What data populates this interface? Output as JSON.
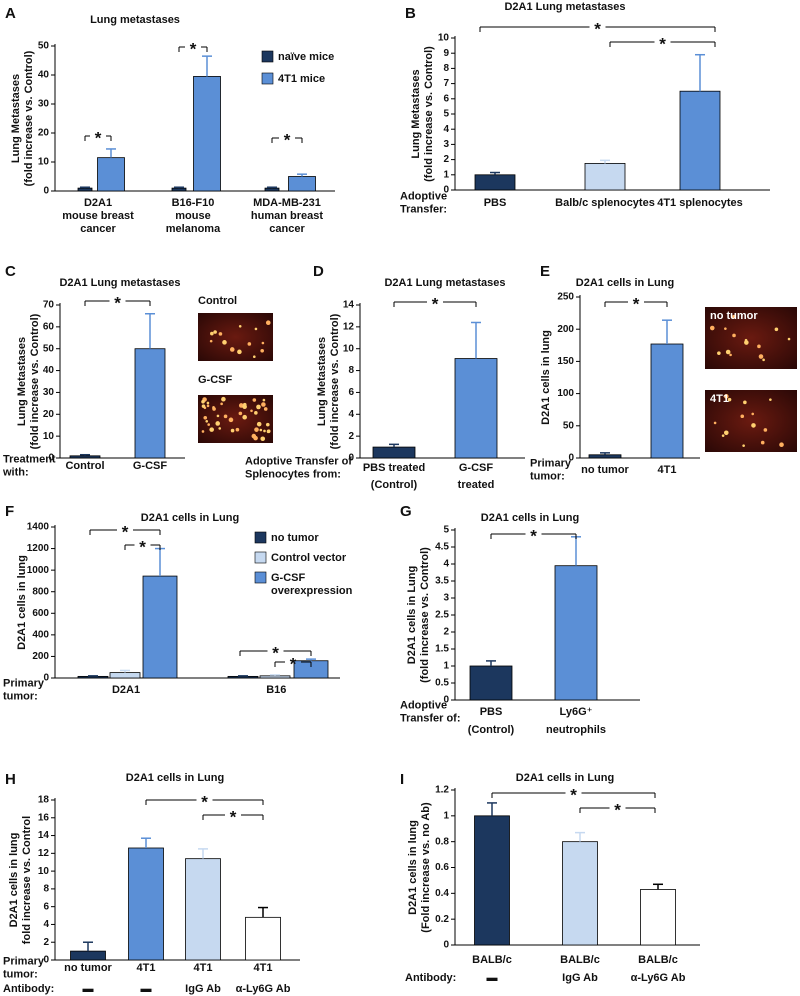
{
  "chart_data": [
    {
      "type": "bar",
      "panel": "A",
      "title": "Lung metastases",
      "ylabel": [
        "Lung Metastases",
        "(fold increase vs. Control)"
      ],
      "categories": [
        [
          "D2A1",
          "mouse breast",
          "cancer"
        ],
        [
          "B16-F10",
          "mouse",
          "melanoma"
        ],
        [
          "MDA-MB-231",
          "human breast",
          "cancer"
        ]
      ],
      "series": [
        {
          "name": "naïve mice",
          "color": "#1c375e",
          "values": [
            1,
            1,
            1
          ],
          "errors": [
            0.3,
            0.3,
            0.3
          ]
        },
        {
          "name": "4T1 mice",
          "color": "#5b8fd6",
          "values": [
            11.5,
            39.5,
            5
          ],
          "errors": [
            3,
            7,
            0.8
          ]
        }
      ],
      "ylim": [
        0,
        50
      ],
      "yticks": [
        0,
        10,
        20,
        30,
        40,
        50
      ],
      "legend": "upper right",
      "significance": [
        "*",
        "*",
        "*"
      ]
    },
    {
      "type": "bar",
      "panel": "B",
      "title": "D2A1 Lung metastases",
      "ylabel": [
        "Lung Metastases",
        "(fold increase vs. Control)"
      ],
      "categories": [
        [
          "PBS"
        ],
        [
          "Balb/c splenocytes"
        ],
        [
          "4T1 splenocytes"
        ]
      ],
      "row_labels": [
        [
          "Adoptive",
          "Transfer:"
        ]
      ],
      "series": [
        {
          "colors": [
            "#1c375e",
            "#c6d9f0",
            "#5b8fd6"
          ],
          "values": [
            1,
            1.75,
            6.5
          ],
          "errors": [
            0.15,
            0.2,
            2.4
          ]
        }
      ],
      "ylim": [
        0,
        10
      ],
      "yticks": [
        0,
        1,
        2,
        3,
        4,
        5,
        6,
        7,
        8,
        9,
        10
      ],
      "significance": [
        "*",
        "*"
      ]
    },
    {
      "type": "bar",
      "panel": "C",
      "title": "D2A1 Lung metastases",
      "ylabel": [
        "Lung Metastases",
        "(fold increase vs. Control)"
      ],
      "categories": [
        [
          "Control"
        ],
        [
          "G-CSF"
        ]
      ],
      "row_labels": [
        [
          "Treatment",
          "with:"
        ]
      ],
      "series": [
        {
          "colors": [
            "#1c375e",
            "#5b8fd6"
          ],
          "values": [
            1,
            50
          ],
          "errors": [
            0.5,
            16
          ]
        }
      ],
      "ylim": [
        0,
        70
      ],
      "yticks": [
        0,
        10,
        20,
        30,
        40,
        50,
        60,
        70
      ],
      "significance": [
        "*"
      ],
      "images": [
        "Control",
        "G-CSF"
      ]
    },
    {
      "type": "bar",
      "panel": "D",
      "title": "D2A1 Lung metastases",
      "ylabel": [
        "Lung Metastases",
        "(fold increase vs. Control)"
      ],
      "categories": [
        [
          "PBS treated",
          "(Control)"
        ],
        [
          "G-CSF",
          "treated"
        ]
      ],
      "row_labels": [
        [
          "Adoptive Transfer of",
          "Splenocytes from:"
        ]
      ],
      "series": [
        {
          "colors": [
            "#1c375e",
            "#5b8fd6"
          ],
          "values": [
            1,
            9.1
          ],
          "errors": [
            0.25,
            3.3
          ]
        }
      ],
      "ylim": [
        0,
        14
      ],
      "yticks": [
        0,
        2,
        4,
        6,
        8,
        10,
        12,
        14
      ],
      "significance": [
        "*"
      ]
    },
    {
      "type": "bar",
      "panel": "E",
      "title": "D2A1 cells in Lung",
      "ylabel": [
        "D2A1 cells in lung"
      ],
      "categories": [
        [
          "no tumor"
        ],
        [
          "4T1"
        ]
      ],
      "row_labels": [
        [
          "Primary",
          "tumor:"
        ]
      ],
      "series": [
        {
          "colors": [
            "#1c375e",
            "#5b8fd6"
          ],
          "values": [
            5,
            177
          ],
          "errors": [
            3,
            37
          ]
        }
      ],
      "ylim": [
        0,
        250
      ],
      "yticks": [
        0,
        50,
        100,
        150,
        200,
        250
      ],
      "significance": [
        "*"
      ],
      "images": [
        "no tumor",
        "4T1"
      ]
    },
    {
      "type": "bar",
      "panel": "F",
      "title": "D2A1 cells in Lung",
      "ylabel": [
        "D2A1 cells  in lung"
      ],
      "categories": [
        [
          "D2A1"
        ],
        [
          "B16"
        ]
      ],
      "row_labels": [
        [
          "Primary",
          "tumor:"
        ]
      ],
      "series": [
        {
          "name": [
            "no tumor"
          ],
          "color": "#1c375e",
          "values": [
            15,
            15
          ],
          "errors": [
            5,
            5
          ]
        },
        {
          "name": [
            "Control vector"
          ],
          "color": "#c6d9f0",
          "values": [
            50,
            20
          ],
          "errors": [
            20,
            8
          ]
        },
        {
          "name": [
            "G-CSF",
            "overexpression"
          ],
          "color": "#5b8fd6",
          "values": [
            945,
            160
          ],
          "errors": [
            255,
            15
          ]
        }
      ],
      "ylim": [
        0,
        1400
      ],
      "yticks": [
        0,
        200,
        400,
        600,
        800,
        1000,
        1200,
        1400
      ],
      "legend": "upper right",
      "significance": [
        "*",
        "*",
        "*",
        "*"
      ]
    },
    {
      "type": "bar",
      "panel": "G",
      "title": "D2A1 cells in Lung",
      "ylabel": [
        "D2A1 cells in Lung",
        "(fold increase vs. Control)"
      ],
      "categories": [
        [
          "PBS",
          "(Control)"
        ],
        [
          "Ly6G⁺",
          "neutrophils"
        ]
      ],
      "row_labels": [
        [
          "Adoptive",
          "Transfer of:"
        ]
      ],
      "series": [
        {
          "colors": [
            "#1c375e",
            "#5b8fd6"
          ],
          "values": [
            1,
            3.95
          ],
          "errors": [
            0.15,
            0.85
          ]
        }
      ],
      "ylim": [
        0,
        5
      ],
      "yticks": [
        0,
        0.5,
        1,
        1.5,
        2,
        2.5,
        3,
        3.5,
        4,
        4.5,
        5
      ],
      "significance": [
        "*"
      ]
    },
    {
      "type": "bar",
      "panel": "H",
      "title": "D2A1 cells in Lung",
      "ylabel": [
        "D2A1 cells  in lung",
        "fold increase vs. Control"
      ],
      "categories": [
        [
          "no tumor",
          "▬"
        ],
        [
          "4T1",
          "▬"
        ],
        [
          "4T1",
          "IgG Ab"
        ],
        [
          "4T1",
          "α-Ly6G Ab"
        ]
      ],
      "row_labels": [
        [
          "Primary",
          "tumor:"
        ],
        [
          "Antibody:"
        ]
      ],
      "series": [
        {
          "colors": [
            "#1c375e",
            "#5b8fd6",
            "#c6d9f0",
            "#ffffff"
          ],
          "values": [
            1,
            12.6,
            11.4,
            4.8
          ],
          "errors": [
            1,
            1.1,
            1.1,
            1.1
          ]
        }
      ],
      "ylim": [
        0,
        18
      ],
      "yticks": [
        0,
        2,
        4,
        6,
        8,
        10,
        12,
        14,
        16,
        18
      ],
      "significance": [
        "*",
        "*"
      ]
    },
    {
      "type": "bar",
      "panel": "I",
      "title": "D2A1 cells in Lung",
      "ylabel": [
        "D2A1 cells in lung",
        "(Fold increase vs. no Ab)"
      ],
      "categories": [
        [
          "BALB/c",
          "▬"
        ],
        [
          "BALB/c",
          "IgG Ab"
        ],
        [
          "BALB/c",
          "α-Ly6G Ab"
        ]
      ],
      "row_labels": [
        null,
        [
          "Antibody:"
        ]
      ],
      "series": [
        {
          "colors": [
            "#1c375e",
            "#c6d9f0",
            "#ffffff"
          ],
          "values": [
            1,
            0.8,
            0.43
          ],
          "errors": [
            0.1,
            0.07,
            0.04
          ]
        }
      ],
      "ylim": [
        0,
        1.2
      ],
      "yticks": [
        0,
        0.2,
        0.4,
        0.6,
        0.8,
        1,
        1.2
      ],
      "significance": [
        "*",
        "*"
      ]
    }
  ]
}
